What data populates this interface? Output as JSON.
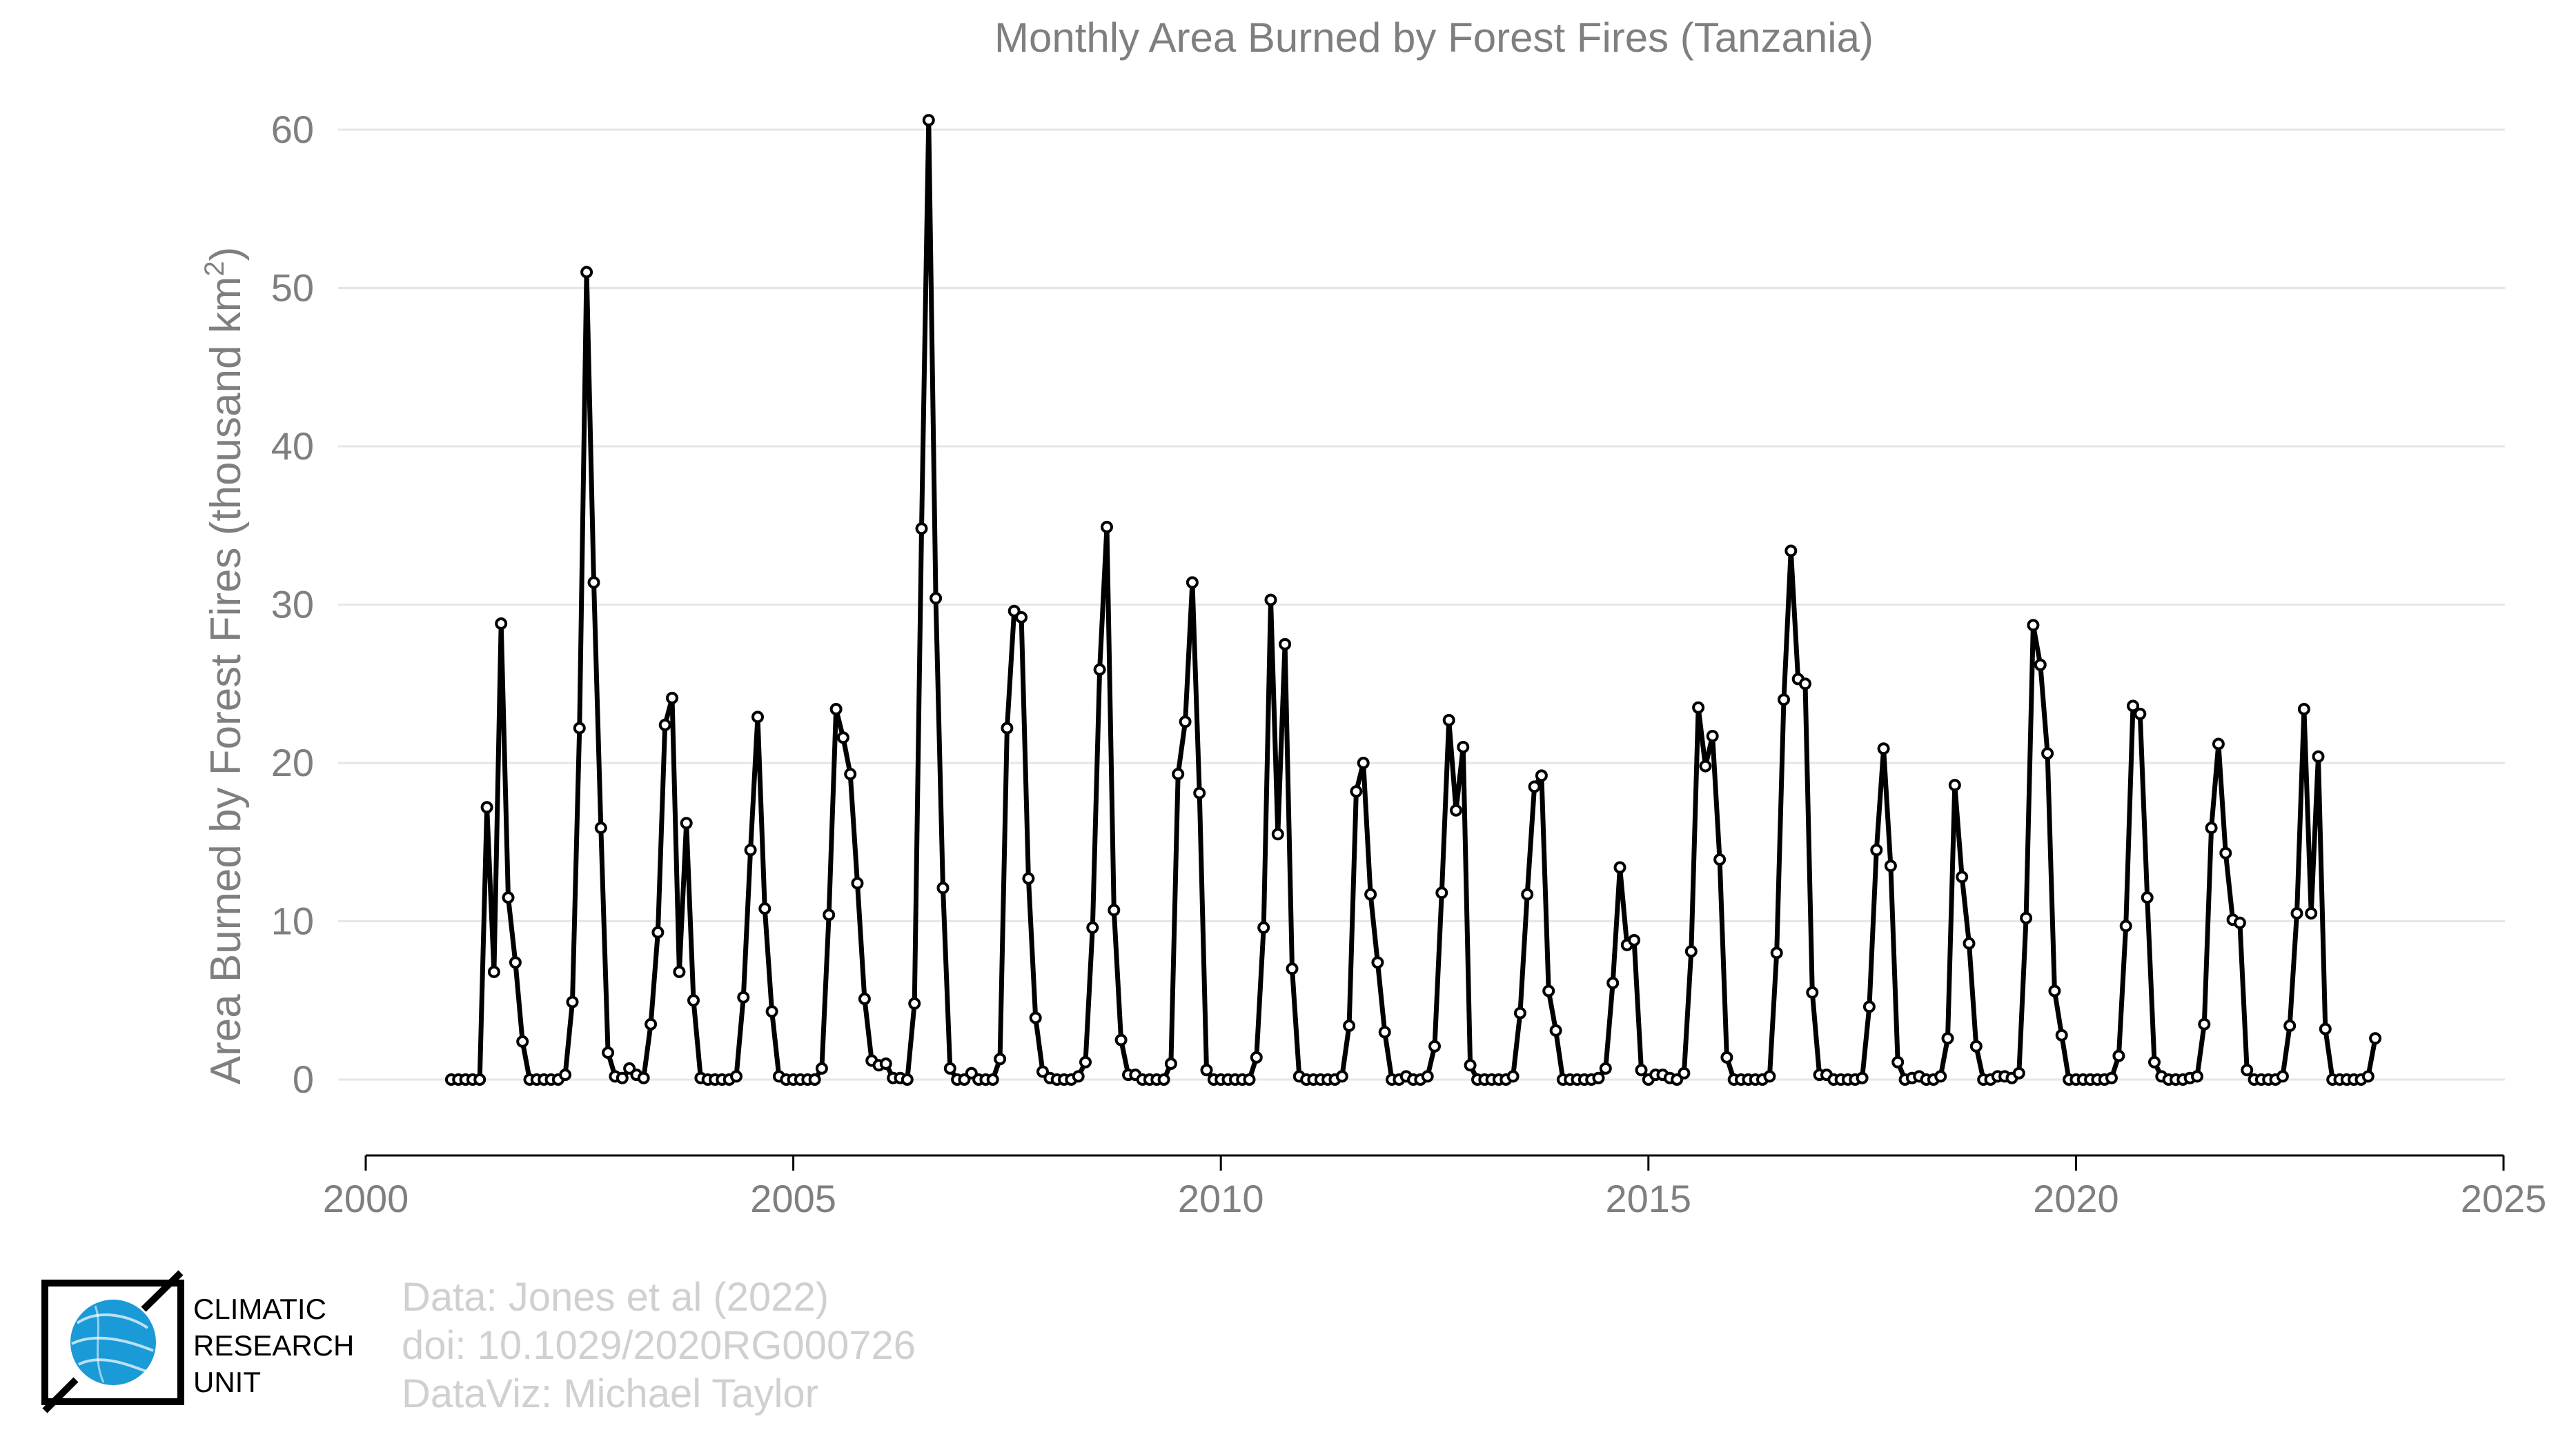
{
  "chart_data": {
    "type": "line",
    "title": "Monthly Area Burned by Forest Fires (Tanzania)",
    "xlabel": "",
    "ylabel": "Area Burned by Forest Fires (thousand km²)",
    "ylabel_main": "Area Burned by Forest Fires (thousand km",
    "ylabel_sup": "2",
    "ylabel_close": ")",
    "xlim": [
      2000,
      2025
    ],
    "ylim": [
      -5,
      62
    ],
    "xticks": [
      2000,
      2005,
      2010,
      2015,
      2020,
      2025
    ],
    "yticks": [
      0,
      10,
      20,
      30,
      40,
      50,
      60
    ],
    "grid": "horizontal",
    "line_color": "#000000",
    "series": [
      {
        "start_year": 2001,
        "start_month": 1,
        "values": [
          0,
          0,
          0,
          0,
          0,
          17.2,
          6.8,
          28.8,
          11.5,
          7.4,
          2.4,
          0,
          0,
          0,
          0,
          0,
          0.3,
          4.9,
          22.2,
          51,
          31.4,
          15.9,
          1.7,
          0.2,
          0.1,
          0.7,
          0.3,
          0.1,
          3.5,
          9.3,
          22.4,
          24.1,
          6.8,
          16.2,
          5,
          0.1,
          0,
          0,
          0,
          0,
          0.2,
          5.2,
          14.5,
          22.9,
          10.8,
          4.3,
          0.2,
          0,
          0,
          0,
          0,
          0,
          0.7,
          10.4,
          23.4,
          21.6,
          19.3,
          12.4,
          5.1,
          1.2,
          0.9,
          1,
          0.1,
          0.1,
          0,
          4.8,
          34.8,
          60.6,
          30.4,
          12.1,
          0.7,
          0,
          0,
          0.4,
          0,
          0,
          0,
          1.3,
          22.2,
          29.6,
          29.2,
          12.7,
          3.9,
          0.5,
          0.1,
          0,
          0,
          0,
          0.2,
          1.1,
          9.6,
          25.9,
          34.9,
          10.7,
          2.5,
          0.3,
          0.3,
          0,
          0,
          0,
          0,
          1,
          19.3,
          22.6,
          31.4,
          18.1,
          0.6,
          0,
          0,
          0,
          0,
          0,
          0,
          1.4,
          9.6,
          30.3,
          15.5,
          27.5,
          7,
          0.2,
          0,
          0,
          0,
          0,
          0,
          0.2,
          3.4,
          18.2,
          20,
          11.7,
          7.4,
          3,
          0,
          0,
          0.2,
          0,
          0,
          0.2,
          2.1,
          11.8,
          22.7,
          17,
          21,
          0.9,
          0,
          0,
          0,
          0,
          0,
          0.2,
          4.2,
          11.7,
          18.5,
          19.2,
          5.6,
          3.1,
          0,
          0,
          0,
          0,
          0,
          0.1,
          0.7,
          6.1,
          13.4,
          8.5,
          8.8,
          0.6,
          0,
          0.3,
          0.3,
          0.1,
          0,
          0.4,
          8.1,
          23.5,
          19.8,
          21.7,
          13.9,
          1.4,
          0,
          0,
          0,
          0,
          0,
          0.2,
          8,
          24,
          33.4,
          25.3,
          25,
          5.5,
          0.3,
          0.3,
          0,
          0,
          0,
          0,
          0.1,
          4.6,
          14.5,
          20.9,
          13.5,
          1.1,
          0,
          0.1,
          0.2,
          0,
          0,
          0.2,
          2.6,
          18.6,
          12.8,
          8.6,
          2.1,
          0,
          0,
          0.2,
          0.2,
          0.1,
          0.4,
          10.2,
          28.7,
          26.2,
          20.6,
          5.6,
          2.8,
          0,
          0,
          0,
          0,
          0,
          0,
          0.1,
          1.5,
          9.7,
          23.6,
          23.1,
          11.5,
          1.1,
          0.2,
          0,
          0,
          0,
          0.1,
          0.2,
          3.5,
          15.9,
          21.2,
          14.3,
          10.1,
          9.9,
          0.6,
          0,
          0,
          0,
          0,
          0.2,
          3.4,
          10.5,
          23.4,
          10.5,
          20.4,
          3.2,
          0,
          0,
          0,
          0,
          0,
          0.2,
          2.6
        ]
      }
    ]
  },
  "credits": {
    "line1": "Data: Jones et al (2022)",
    "line2": "doi: 10.1029/2020RG000726",
    "line3": "DataViz: Michael Taylor"
  },
  "logo": {
    "line1": "CLIMATIC",
    "line2": "RESEARCH",
    "line3": "UNIT",
    "globe_color": "#1a9ad6",
    "bracket_color": "#000000"
  }
}
